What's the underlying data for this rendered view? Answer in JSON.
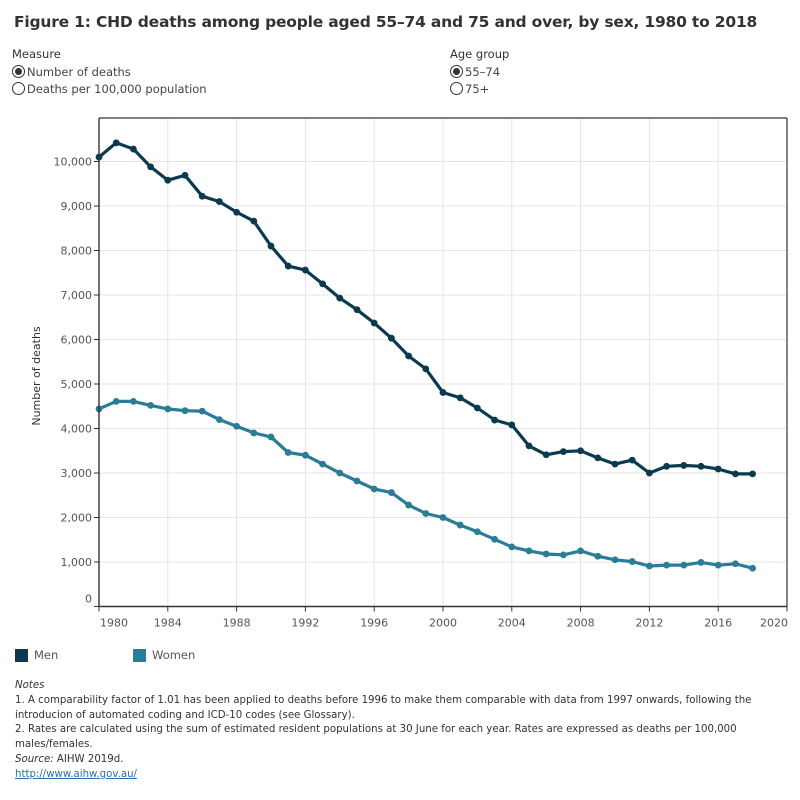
{
  "title": "Figure 1: CHD deaths among people aged 55–74 and 75 and over, by sex, 1980 to 2018",
  "filters": {
    "measure": {
      "label": "Measure",
      "options": [
        {
          "label": "Number of deaths",
          "selected": true
        },
        {
          "label": "Deaths per 100,000 population",
          "selected": false
        }
      ]
    },
    "age_group": {
      "label": "Age group",
      "options": [
        {
          "label": "55–74",
          "selected": true
        },
        {
          "label": "75+",
          "selected": false
        }
      ]
    }
  },
  "colors": {
    "men": "#0b3a50",
    "women": "#2a7d96",
    "grid": "#e4e4e4",
    "axis": "#333333"
  },
  "legend": {
    "men": "Men",
    "women": "Women"
  },
  "notes": {
    "heading": "Notes",
    "note1_line1": "1. A comparability factor of 1.01 has been applied to deaths before 1996 to make them comparable with data from 1997 onwards, following the",
    "note1_line2": "introducion of automated coding and ICD-10 codes (see Glossary).",
    "note2_line1": "2.  Rates are calculated using the sum of estimated resident populations at 30 June for each year. Rates are expressed as deaths per 100,000",
    "note2_line2": "males/females.",
    "source_label": "Source:",
    "source_text": " AIHW 2019d.",
    "link": "http://www.aihw.gov.au/"
  },
  "chart_data": {
    "type": "line",
    "title": "Figure 1: CHD deaths among people aged 55–74 and 75 and over, by sex, 1980 to 2018",
    "xlabel": "",
    "ylabel": "Number of deaths",
    "xlim": [
      1980,
      2020
    ],
    "ylim": [
      0,
      11000
    ],
    "x_ticks": [
      1980,
      1984,
      1988,
      1992,
      1996,
      2000,
      2004,
      2008,
      2012,
      2016,
      2020
    ],
    "y_ticks": [
      0,
      1000,
      2000,
      3000,
      4000,
      5000,
      6000,
      7000,
      8000,
      9000,
      10000
    ],
    "x_tick_labels": [
      "1980",
      "1984",
      "1988",
      "1992",
      "1996",
      "2000",
      "2004",
      "2008",
      "2012",
      "2016",
      "2020"
    ],
    "y_tick_labels": [
      "0",
      "1,000",
      "2,000",
      "3,000",
      "4,000",
      "5,000",
      "6,000",
      "7,000",
      "8,000",
      "9,000",
      "10,000"
    ],
    "grid": true,
    "legend_position": "bottom-left",
    "x": [
      1980,
      1981,
      1982,
      1983,
      1984,
      1985,
      1986,
      1987,
      1988,
      1989,
      1990,
      1991,
      1992,
      1993,
      1994,
      1995,
      1996,
      1997,
      1998,
      1999,
      2000,
      2001,
      2002,
      2003,
      2004,
      2005,
      2006,
      2007,
      2008,
      2009,
      2010,
      2011,
      2012,
      2013,
      2014,
      2015,
      2016,
      2017,
      2018
    ],
    "series": [
      {
        "name": "Men",
        "values": [
          10100,
          10420,
          10280,
          9880,
          9580,
          9690,
          9220,
          9100,
          8860,
          8660,
          8100,
          7650,
          7560,
          7250,
          6930,
          6670,
          6370,
          6030,
          5630,
          5340,
          4810,
          4690,
          4460,
          4190,
          4080,
          3610,
          3410,
          3480,
          3500,
          3340,
          3200,
          3290,
          3000,
          3150,
          3170,
          3150,
          3090,
          2980,
          2980
        ]
      },
      {
        "name": "Women",
        "values": [
          4440,
          4610,
          4610,
          4520,
          4440,
          4400,
          4390,
          4200,
          4050,
          3900,
          3810,
          3460,
          3400,
          3200,
          3000,
          2820,
          2640,
          2560,
          2280,
          2090,
          2000,
          1830,
          1680,
          1510,
          1340,
          1250,
          1180,
          1160,
          1250,
          1130,
          1050,
          1010,
          910,
          930,
          930,
          990,
          930,
          960,
          860
        ]
      }
    ]
  }
}
